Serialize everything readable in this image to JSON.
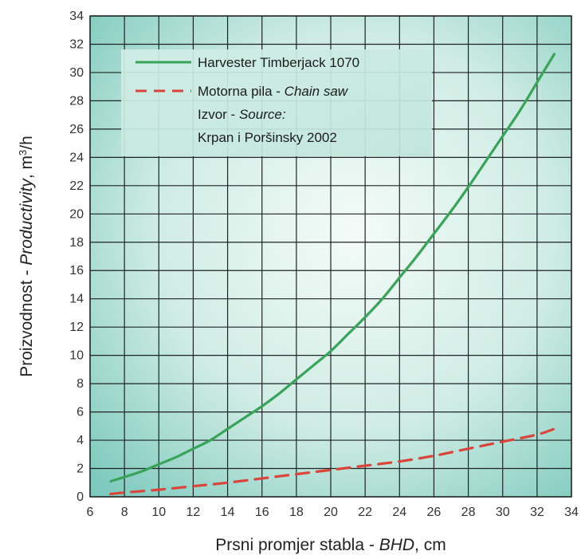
{
  "chart_data": {
    "type": "line",
    "xlabel": {
      "prefix": "Prsni promjer stabla - ",
      "italic": "BHD",
      "suffix": ", cm"
    },
    "ylabel": {
      "prefix": "Proizvodnost - ",
      "italic": "Productivity",
      "suffix": ", m",
      "sup": "3",
      "suffix2": "/h"
    },
    "xlim": [
      6,
      34
    ],
    "ylim": [
      0,
      34
    ],
    "xticks": [
      6,
      8,
      10,
      12,
      14,
      16,
      18,
      20,
      22,
      24,
      26,
      28,
      30,
      32,
      34
    ],
    "yticks": [
      0,
      2,
      4,
      6,
      8,
      10,
      12,
      14,
      16,
      18,
      20,
      22,
      24,
      26,
      28,
      30,
      32,
      34
    ],
    "grid": true,
    "legend": {
      "position": "top-left",
      "entries": [
        {
          "text": "Harvester Timberjack 1070",
          "series": 0
        },
        {
          "text_plain": "Motorna pila - ",
          "text_italic": "Chain saw",
          "series": 1
        }
      ],
      "source_lines": [
        {
          "plain": "Izvor - ",
          "italic": "Source:"
        },
        {
          "plain": "Krpan i Poršinsky 2002",
          "italic": ""
        }
      ]
    },
    "series": [
      {
        "name": "Harvester Timberjack 1070",
        "color": "#3aa35a",
        "style": "solid",
        "x": [
          7.2,
          8,
          9,
          10,
          11,
          12,
          13,
          14,
          15,
          16,
          17,
          18,
          19,
          20,
          21,
          22,
          23,
          24,
          25,
          26,
          27,
          28,
          29,
          30,
          31,
          32,
          33
        ],
        "y": [
          1.1,
          1.4,
          1.8,
          2.3,
          2.8,
          3.4,
          4.0,
          4.8,
          5.6,
          6.4,
          7.3,
          8.3,
          9.3,
          10.3,
          11.5,
          12.7,
          14.0,
          15.5,
          17.0,
          18.6,
          20.2,
          21.9,
          23.7,
          25.5,
          27.3,
          29.3,
          31.3
        ]
      },
      {
        "name": "Motorna pila - Chain saw",
        "color": "#d9453b",
        "style": "dashed",
        "x": [
          7.2,
          8,
          10,
          12,
          14,
          16,
          18,
          20,
          22,
          24,
          26,
          28,
          30,
          32,
          33
        ],
        "y": [
          0.2,
          0.3,
          0.5,
          0.75,
          1.0,
          1.3,
          1.6,
          1.9,
          2.2,
          2.5,
          2.9,
          3.4,
          3.9,
          4.4,
          4.8
        ]
      }
    ]
  }
}
